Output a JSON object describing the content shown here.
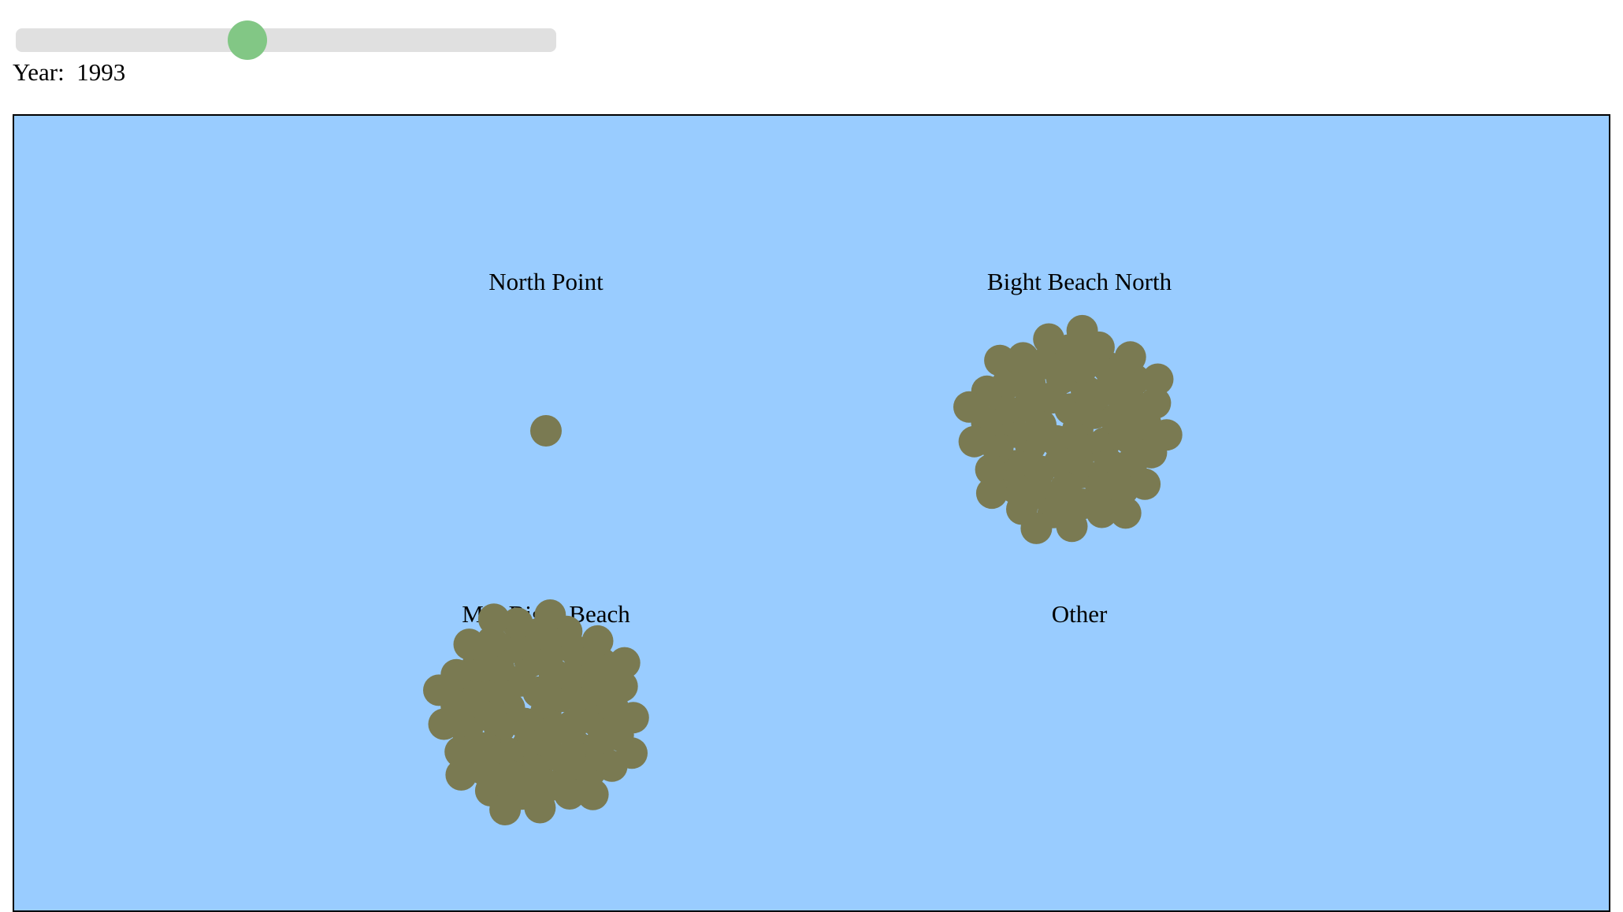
{
  "slider": {
    "label_prefix": "Year:",
    "year": 1993,
    "fraction": 0.423,
    "thumb_color": "#82c785",
    "track_color": "#e0e0e0"
  },
  "map": {
    "background_color": "#99ccff",
    "dot_color": "#7a7a52",
    "regions": [
      {
        "name": "North Point",
        "count": 1
      },
      {
        "name": "Bight Beach North",
        "count": 62
      },
      {
        "name": "Mid Bight Beach",
        "count": 64
      },
      {
        "name": "Other",
        "count": 0
      }
    ]
  }
}
